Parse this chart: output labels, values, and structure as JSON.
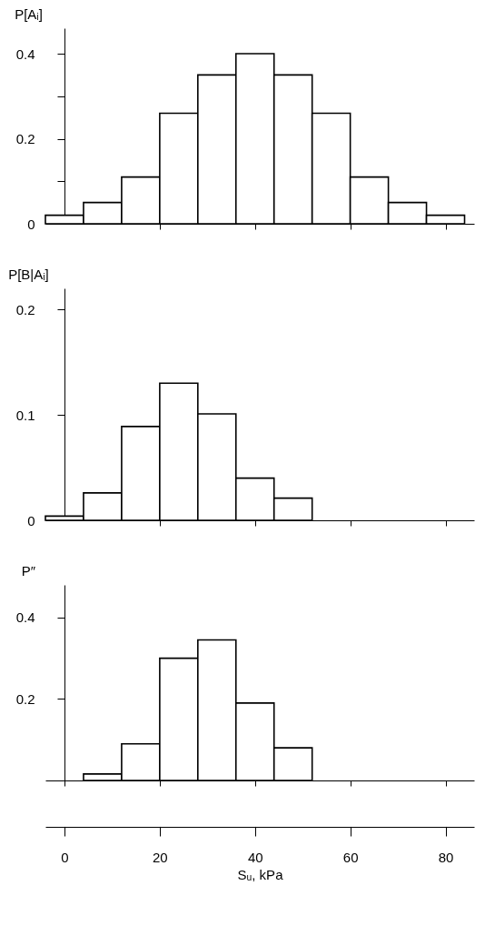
{
  "chart_data": [
    {
      "type": "histogram",
      "ylabel": "P[Aᵢ]",
      "bins": [
        -4,
        4,
        12,
        20,
        28,
        36,
        44,
        52,
        60,
        68,
        76,
        84
      ],
      "values": [
        0.02,
        0.05,
        0.11,
        0.26,
        0.35,
        0.4,
        0.35,
        0.26,
        0.11,
        0.05,
        0.02
      ],
      "color": "#ffffff",
      "xlim": [
        -4,
        86
      ],
      "xticks": [
        {
          "value": 20,
          "label": null
        },
        {
          "value": 40,
          "label": null
        },
        {
          "value": 60,
          "label": null
        },
        {
          "value": 80,
          "label": null
        }
      ],
      "ylim": [
        0,
        0.46
      ],
      "yticks": [
        0,
        {
          "value": 0.1,
          "label": null
        },
        0.2,
        {
          "value": 0.3,
          "label": null
        },
        0.4
      ],
      "tick_labels": "y"
    },
    {
      "type": "histogram",
      "ylabel": "P[B|Aᵢ]",
      "bins": [
        -4,
        4,
        12,
        20,
        28,
        36,
        44,
        52
      ],
      "values": [
        0.004,
        0.026,
        0.089,
        0.13,
        0.101,
        0.04,
        0.021
      ],
      "color": "#ffffff",
      "xlim": [
        -4,
        86
      ],
      "xticks": [
        {
          "value": 20,
          "label": null
        },
        {
          "value": 40,
          "label": null
        },
        {
          "value": 60,
          "label": null
        },
        {
          "value": 80,
          "label": null
        }
      ],
      "ylim": [
        0,
        0.22
      ],
      "yticks": [
        0,
        0.1,
        0.2
      ],
      "tick_labels": "y"
    },
    {
      "type": "histogram",
      "ylabel": "P″",
      "xlabel": "Sᵤ, kPa",
      "bins": [
        4,
        12,
        20,
        28,
        36,
        44,
        52
      ],
      "values": [
        0.016,
        0.09,
        0.3,
        0.345,
        0.19,
        0.08
      ],
      "color": "#ffffff",
      "xlim": [
        -4,
        86
      ],
      "xticks": [
        0,
        20,
        40,
        60,
        80
      ],
      "ylim": [
        0,
        0.48
      ],
      "yticks": [
        0.2,
        0.4
      ]
    }
  ]
}
